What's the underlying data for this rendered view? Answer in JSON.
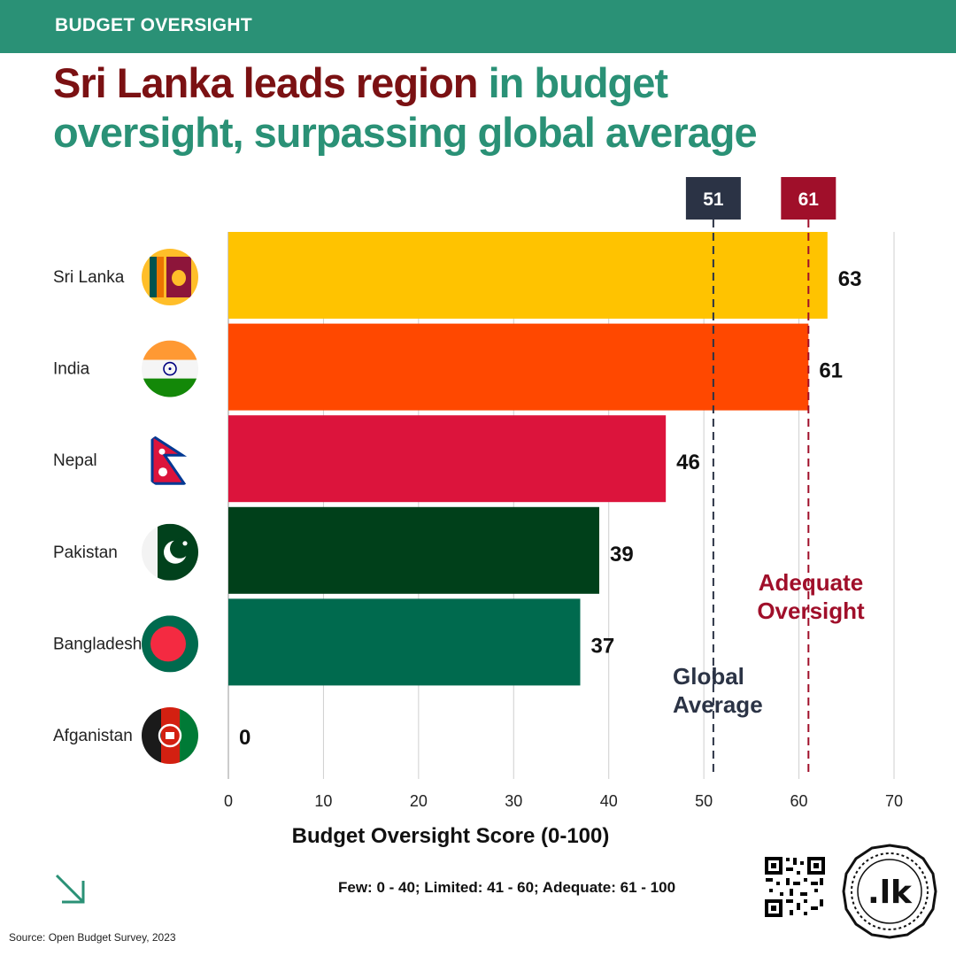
{
  "header": {
    "label": "BUDGET OVERSIGHT"
  },
  "headline": {
    "part1": "Sri Lanka leads region",
    "part2": "in budget oversight, surpassing global average"
  },
  "chart_data": {
    "type": "bar",
    "orientation": "horizontal",
    "categories": [
      "Sri Lanka",
      "India",
      "Nepal",
      "Pakistan",
      "Bangladesh",
      "Afganistan"
    ],
    "values": [
      63,
      61,
      46,
      39,
      37,
      0
    ],
    "value_labels": [
      "63",
      "61",
      "46",
      "39",
      "37",
      "0"
    ],
    "bar_colors": [
      "#ffc300",
      "#ff4800",
      "#dc143c",
      "#00401a",
      "#006a4e",
      "#000000"
    ],
    "xlabel": "Budget Oversight  Score (0-100)",
    "xlim": [
      0,
      70
    ],
    "xticks": [
      0,
      10,
      20,
      30,
      40,
      50,
      60,
      70
    ],
    "grid": "vertical",
    "flag_icons": [
      "flag-sri-lanka-icon",
      "flag-india-icon",
      "flag-nepal-icon",
      "flag-pakistan-icon",
      "flag-bangladesh-icon",
      "flag-afghanistan-icon"
    ],
    "reference_lines": [
      {
        "value": 51,
        "badge": "51",
        "label": [
          "Global",
          "Average"
        ],
        "color": "#2b3345"
      },
      {
        "value": 61,
        "badge": "61",
        "label": [
          "Adequate",
          "Oversight"
        ],
        "color": "#a00f2a"
      }
    ]
  },
  "legend": "Few: 0 - 40; Limited: 41 - 60; Adequate: 61 - 100",
  "source": "Source: Open Budget Survey, 2023",
  "brand": {
    "logo_text": ".lk"
  }
}
